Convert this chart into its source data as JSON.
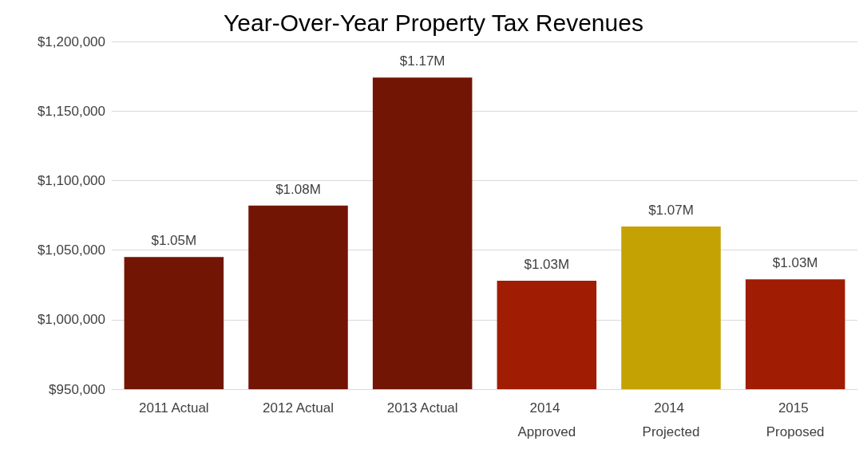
{
  "chart_data": {
    "type": "bar",
    "title": "Year-Over-Year Property Tax Revenues",
    "categories": [
      "2011 Actual",
      "2012 Actual",
      "2013 Actual",
      "2014 Approved",
      "2014 Projected",
      "2015 Proposed"
    ],
    "values": [
      1045000,
      1082000,
      1174000,
      1028000,
      1067000,
      1029000
    ],
    "colors": [
      "#731504",
      "#731504",
      "#731504",
      "#a01c02",
      "#c4a204",
      "#a01c02"
    ],
    "value_labels": [
      "$1.05M",
      "$1.08M",
      "$1.17M",
      "$1.03M",
      "$1.07M",
      "$1.03M"
    ],
    "ylim": [
      950000,
      1200000
    ],
    "yticks": [
      {
        "value": 950000,
        "label": "$950,000"
      },
      {
        "value": 1000000,
        "label": "$1,000,000"
      },
      {
        "value": 1050000,
        "label": "$1,050,000"
      },
      {
        "value": 1100000,
        "label": "$1,100,000"
      },
      {
        "value": 1150000,
        "label": "$1,150,000"
      },
      {
        "value": 1200000,
        "label": "$1,200,000"
      }
    ],
    "grid": "y"
  }
}
